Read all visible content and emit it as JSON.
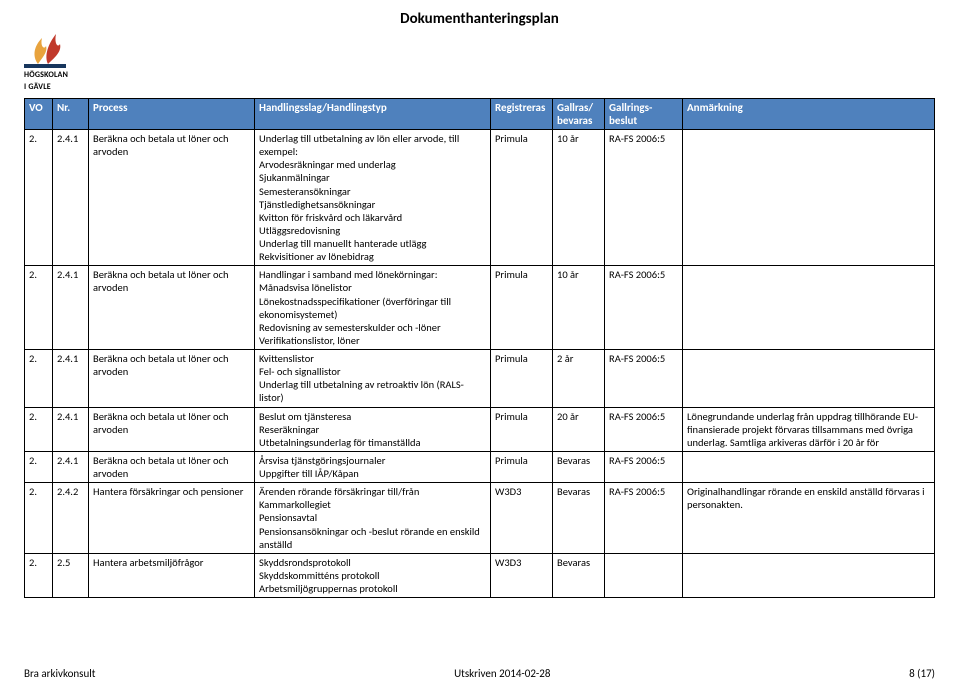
{
  "title": "Dokumenthanteringsplan",
  "logo": {
    "top_text": "HÖGSKOLAN",
    "bottom_text": "I GÄVLE",
    "flame_color_left": "#e8a33d",
    "flame_color_right": "#c0392b",
    "band_color": "#17365d"
  },
  "header": {
    "c0": "VO",
    "c1": "Nr.",
    "c2": "Process",
    "c3": "Handlingsslag/Handlingstyp",
    "c4": "Registreras",
    "c5": "Gallras/\nbevaras",
    "c6": "Gallrings-\nbeslut",
    "c7": "Anmärkning"
  },
  "rows": [
    {
      "vo": "2.",
      "nr": "2.4.1",
      "process": "Beräkna och betala ut löner och arvoden",
      "handling": "Underlag till utbetalning av lön eller arvode, till exempel:\nArvodesräkningar med underlag\nSjukanmälningar\nSemesteransökningar\nTjänstledighetsansökningar\nKvitton för friskvård och läkarvård\nUtläggsredovisning\nUnderlag till manuellt hanterade utlägg\nRekvisitioner av lönebidrag",
      "reg": "Primula",
      "gallras": "10 år",
      "beslut": "RA-FS 2006:5",
      "anm": ""
    },
    {
      "vo": "2.",
      "nr": "2.4.1",
      "process": "Beräkna och betala ut löner och arvoden",
      "handling": "Handlingar i samband med lönekörningar:\nMånadsvisa lönelistor\nLönekostnadsspecifikationer (överföringar till ekonomisystemet)\nRedovisning av semesterskulder och -löner\nVerifikationslistor, löner",
      "reg": "Primula",
      "gallras": "10 år",
      "beslut": "RA-FS 2006:5",
      "anm": ""
    },
    {
      "vo": "2.",
      "nr": "2.4.1",
      "process": "Beräkna och betala ut löner och arvoden",
      "handling": "Kvittenslistor\nFel- och signallistor\nUnderlag till utbetalning av retroaktiv lön (RALS-listor)",
      "reg": "Primula",
      "gallras": "2 år",
      "beslut": "RA-FS 2006:5",
      "anm": ""
    },
    {
      "vo": "2.",
      "nr": "2.4.1",
      "process": "Beräkna och betala ut löner och arvoden",
      "handling": "Beslut om tjänsteresa\nReseräkningar\nUtbetalningsunderlag för timanställda",
      "reg": "Primula",
      "gallras": "20 år",
      "beslut": "RA-FS 2006:5",
      "anm": "Lönegrundande underlag från uppdrag tillhörande EU-finansierade projekt förvaras tillsammans med övriga underlag. Samtliga arkiveras därför i 20 år för"
    },
    {
      "vo": "2.",
      "nr": "2.4.1",
      "process": "Beräkna och betala ut löner och arvoden",
      "handling": "Årsvisa tjänstgöringsjournaler\nUppgifter till IÅP/Kåpan",
      "reg": "Primula",
      "gallras": "Bevaras",
      "beslut": "RA-FS 2006:5",
      "anm": ""
    },
    {
      "vo": "2.",
      "nr": "2.4.2",
      "process": "Hantera försäkringar och pensioner",
      "handling": "Ärenden rörande försäkringar till/från Kammarkollegiet\nPensionsavtal\nPensionsansökningar och -beslut rörande en enskild anställd",
      "reg": "W3D3",
      "gallras": "Bevaras",
      "beslut": "RA-FS 2006:5",
      "anm": "Originalhandlingar rörande en enskild anställd förvaras i personakten."
    },
    {
      "vo": "2.",
      "nr": "2.5",
      "process": "Hantera arbetsmiljöfrågor",
      "handling": "Skyddsrondsprotokoll\nSkyddskommitténs protokoll\nArbetsmiljögruppernas protokoll",
      "reg": "W3D3",
      "gallras": "Bevaras",
      "beslut": "",
      "anm": ""
    }
  ],
  "footer": {
    "left": "Bra arkivkonsult",
    "center": "Utskriven 2014-02-28",
    "right": "8 (17)"
  }
}
